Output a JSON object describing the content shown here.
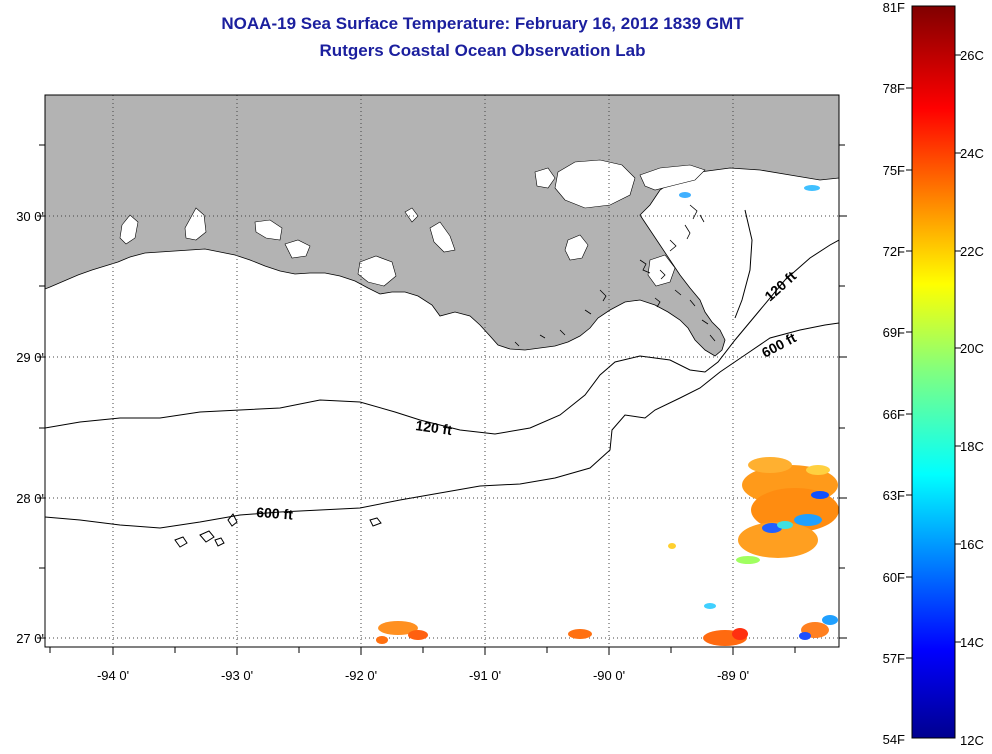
{
  "header": {
    "title": "NOAA-19 Sea Surface Temperature:  February 16, 2012 1839 GMT",
    "subtitle": "Rutgers Coastal Ocean Observation Lab"
  },
  "map": {
    "lon_labels": [
      "-94 0'",
      "-93 0'",
      "-92 0'",
      "-91 0'",
      "-90 0'",
      "-89 0'"
    ],
    "lat_labels": [
      "30 0'",
      "29 0'",
      "28 0'",
      "27 0'"
    ],
    "contour_labels": {
      "inner_west": "120 ft",
      "outer_west": "600 ft",
      "inner_east": "120 ft",
      "outer_east": "600 ft"
    },
    "colors": {
      "land": "#b3b3b3",
      "ocean": "#ffffff",
      "coast": "#000000"
    }
  },
  "colorbar": {
    "fahrenheit_labels": [
      "81F",
      "78F",
      "75F",
      "72F",
      "69F",
      "66F",
      "63F",
      "60F",
      "57F",
      "54F"
    ],
    "celsius_labels": [
      "26C",
      "24C",
      "22C",
      "20C",
      "18C",
      "16C",
      "14C",
      "12C"
    ],
    "colormap": "jet",
    "range_f": [
      54,
      81
    ],
    "range_c": [
      12,
      27
    ]
  }
}
